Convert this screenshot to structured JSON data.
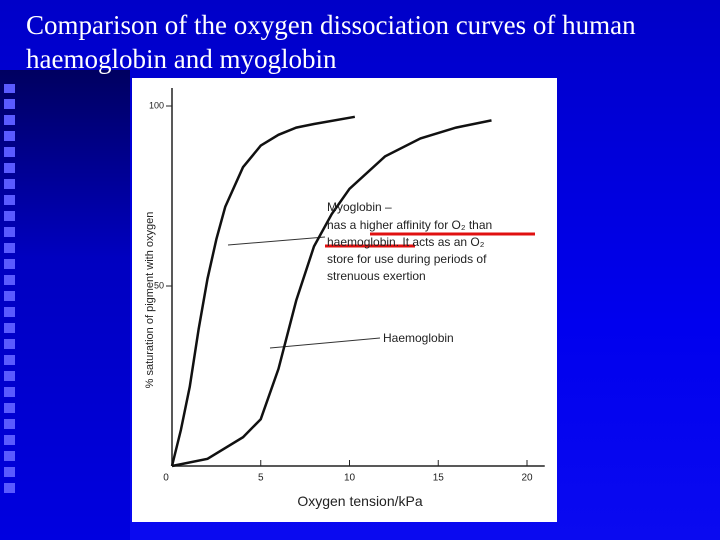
{
  "chart_data": {
    "type": "line",
    "title": "Comparison of the oxygen dissociation curves of human haemoglobin and myoglobin",
    "x_label": "Oxygen tension/kPa",
    "y_label": "% saturation of pigment with oxygen",
    "xlim": [
      0,
      21
    ],
    "xticks": [
      0,
      5,
      10,
      15,
      20
    ],
    "ylim": [
      0,
      105
    ],
    "yticks": [
      50,
      100
    ],
    "series": [
      {
        "name": "Myoglobin –",
        "color": "#111111",
        "x": [
          0,
          0.5,
          1,
          1.5,
          2,
          2.5,
          3,
          4,
          5,
          6,
          7,
          8,
          10.3
        ],
        "values": [
          0,
          10,
          22,
          38,
          52,
          63,
          72,
          83,
          89,
          92,
          94,
          95,
          97
        ]
      },
      {
        "name": "Haemoglobin",
        "color": "#111111",
        "x": [
          0,
          2,
          4,
          5,
          6,
          7,
          8,
          9,
          10,
          12,
          14,
          16,
          18
        ],
        "values": [
          0,
          2,
          8,
          13,
          27,
          46,
          61,
          70,
          77,
          86,
          91,
          94,
          96
        ]
      }
    ],
    "annotation": [
      "has a higher affinity for O₂ than",
      "haemoglobin. It acts as an O₂",
      "store for use during periods of",
      "strenuous exertion"
    ]
  }
}
